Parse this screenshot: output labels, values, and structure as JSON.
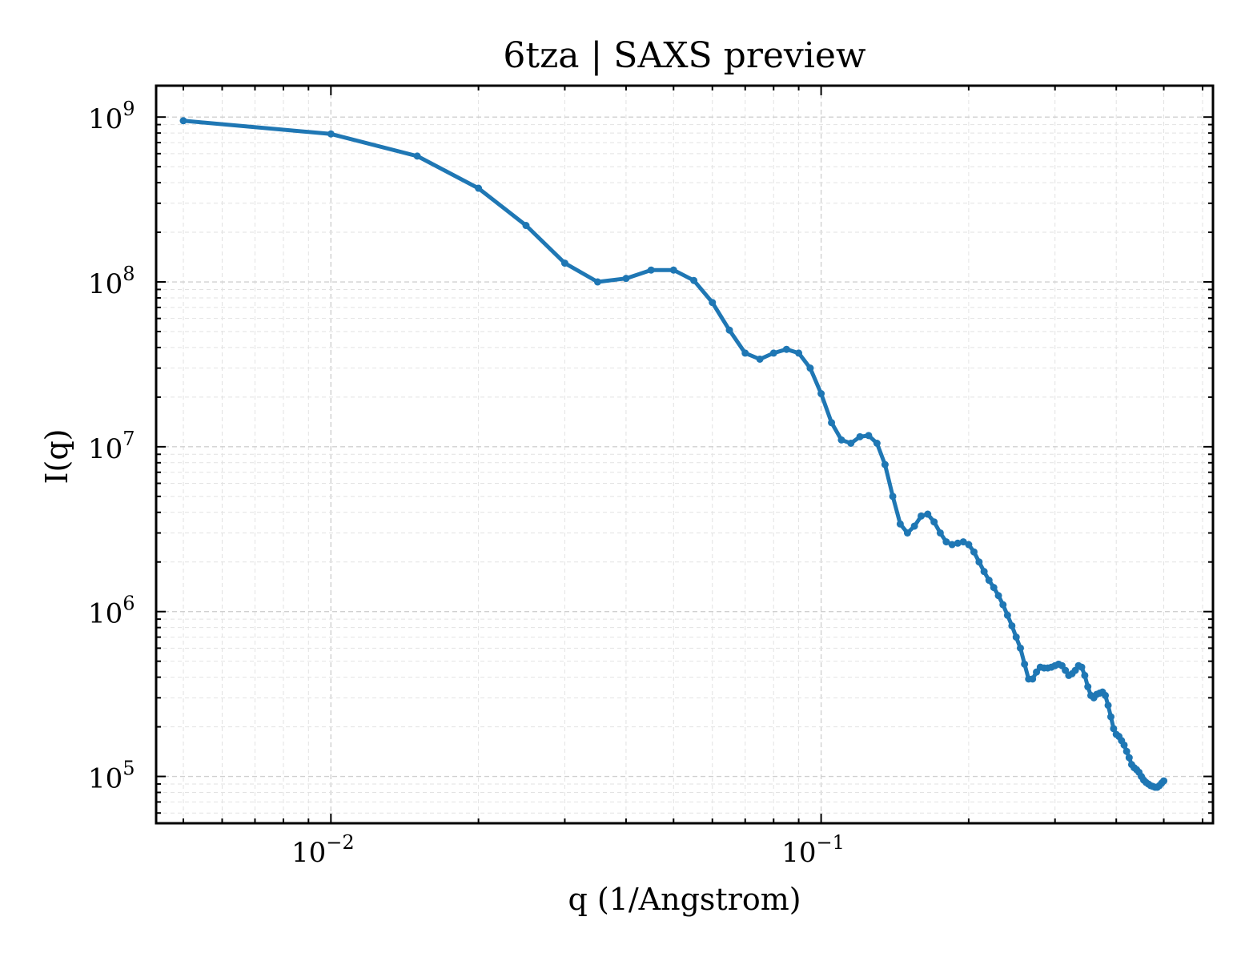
{
  "chart_data": {
    "type": "line",
    "title": "6tza | SAXS preview",
    "xlabel": "q (1/Angstrom)",
    "ylabel": "I(q)",
    "xscale": "log",
    "yscale": "log",
    "xlim": [
      0.0044,
      0.63
    ],
    "ylim": [
      52000,
      1550000000
    ],
    "grid": true,
    "x_ticks": [
      {
        "value": 0.01,
        "base": "10",
        "exp": "−2"
      },
      {
        "value": 0.1,
        "base": "10",
        "exp": "−1"
      }
    ],
    "y_ticks": [
      {
        "value": 100000,
        "base": "10",
        "exp": "5"
      },
      {
        "value": 1000000,
        "base": "10",
        "exp": "6"
      },
      {
        "value": 10000000,
        "base": "10",
        "exp": "7"
      },
      {
        "value": 100000000,
        "base": "10",
        "exp": "8"
      },
      {
        "value": 1000000000,
        "base": "10",
        "exp": "9"
      }
    ],
    "series": [
      {
        "color": "#1f77b4",
        "x": [
          0.005,
          0.01,
          0.015,
          0.02,
          0.025,
          0.03,
          0.035,
          0.04,
          0.045,
          0.05,
          0.055,
          0.06,
          0.065,
          0.07,
          0.075,
          0.08,
          0.085,
          0.09,
          0.095,
          0.1,
          0.105,
          0.11,
          0.115,
          0.12,
          0.125,
          0.13,
          0.135,
          0.14,
          0.145,
          0.15,
          0.155,
          0.16,
          0.165,
          0.17,
          0.175,
          0.18,
          0.185,
          0.19,
          0.195,
          0.2,
          0.205,
          0.21,
          0.215,
          0.22,
          0.225,
          0.23,
          0.235,
          0.24,
          0.245,
          0.25,
          0.255,
          0.26,
          0.265,
          0.27,
          0.275,
          0.28,
          0.285,
          0.29,
          0.295,
          0.3,
          0.305,
          0.31,
          0.315,
          0.32,
          0.325,
          0.33,
          0.335,
          0.34,
          0.345,
          0.35,
          0.355,
          0.36,
          0.365,
          0.37,
          0.375,
          0.38,
          0.385,
          0.39,
          0.395,
          0.4,
          0.405,
          0.41,
          0.415,
          0.42,
          0.425,
          0.43,
          0.435,
          0.44,
          0.445,
          0.45,
          0.455,
          0.46,
          0.465,
          0.47,
          0.475,
          0.48,
          0.485,
          0.49,
          0.495,
          0.5
        ],
        "y": [
          950000000,
          790000000,
          580000000,
          370000000,
          220000000,
          130000000,
          100000000,
          105000000,
          118000000,
          118000000,
          102000000,
          75000000,
          51000000,
          37000000,
          34000000,
          37000000,
          39000000,
          37000000,
          30000000,
          21000000,
          14000000,
          11000000,
          10500000,
          11500000,
          11700000,
          10500000,
          7800000,
          5000000,
          3400000,
          3000000,
          3300000,
          3800000,
          3900000,
          3500000,
          3000000,
          2650000,
          2550000,
          2600000,
          2650000,
          2550000,
          2300000,
          2000000,
          1750000,
          1550000,
          1400000,
          1250000,
          1100000,
          950000,
          820000,
          700000,
          600000,
          480000,
          390000,
          390000,
          430000,
          460000,
          455000,
          455000,
          460000,
          470000,
          480000,
          470000,
          440000,
          410000,
          420000,
          440000,
          470000,
          460000,
          410000,
          350000,
          310000,
          300000,
          315000,
          320000,
          325000,
          310000,
          270000,
          230000,
          195000,
          180000,
          175000,
          165000,
          155000,
          142000,
          130000,
          118000,
          113000,
          110000,
          106000,
          100000,
          95000,
          92000,
          90000,
          88000,
          87000,
          86000,
          86000,
          88000,
          91000,
          94000
        ]
      }
    ]
  }
}
